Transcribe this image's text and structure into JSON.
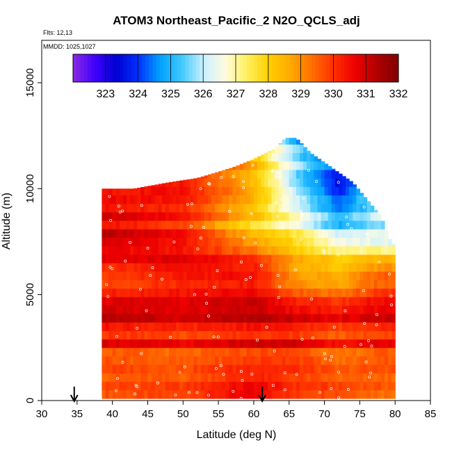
{
  "chart_data": {
    "type": "heatmap",
    "title": "ATOM3 Northeast_Pacific_2 N2O_QCLS_adj",
    "flights_text": "Flts: 12,13",
    "dates_text": "MMDD: 1025,1027",
    "xlabel": "Latitude (deg N)",
    "ylabel": "Altitude (m)",
    "xlim": [
      30,
      85
    ],
    "ylim": [
      0,
      17000
    ],
    "x_ticks": [
      "30",
      "35",
      "40",
      "45",
      "50",
      "55",
      "60",
      "65",
      "70",
      "75",
      "80",
      "85"
    ],
    "y_ticks": [
      "0",
      "5000",
      "10000",
      "15000"
    ],
    "colorbar": {
      "range": [
        322,
        332
      ],
      "tick_labels": [
        "323",
        "324",
        "325",
        "326",
        "327",
        "328",
        "329",
        "330",
        "331",
        "332"
      ],
      "colors": [
        "#8a2be2",
        "#4000ff",
        "#0000d0",
        "#0030ff",
        "#00a0ff",
        "#40c8ff",
        "#c8f0ff",
        "#fffbe0",
        "#fff060",
        "#ffd000",
        "#ffaa00",
        "#ff7000",
        "#ff3000",
        "#ee0000",
        "#b00000",
        "#800000"
      ]
    },
    "profile_markers_lat": [
      34.6,
      61.2
    ],
    "domain_top": [
      [
        39,
        10000
      ],
      [
        43,
        10000
      ],
      [
        48,
        10300
      ],
      [
        52,
        10500
      ],
      [
        57,
        11000
      ],
      [
        60,
        11400
      ],
      [
        63,
        11900
      ],
      [
        64.5,
        12400
      ],
      [
        66,
        12400
      ],
      [
        68,
        11700
      ],
      [
        71,
        11000
      ],
      [
        74,
        10300
      ],
      [
        76,
        9500
      ],
      [
        78,
        8700
      ],
      [
        79.5,
        7400
      ],
      [
        80,
        7400
      ]
    ],
    "domain_left_lat": 38.5,
    "domain_right_lat": 80,
    "value_grid_note": "N2O (ppb) field estimated from colors",
    "field_profiles": [
      {
        "lat": 40,
        "alt": [
          0,
          2000,
          4000,
          6000,
          8000,
          10000
        ],
        "values": [
          330.3,
          330.0,
          330.8,
          329.8,
          330.8,
          330.5
        ]
      },
      {
        "lat": 50,
        "alt": [
          0,
          2000,
          4000,
          6000,
          8000,
          10000
        ],
        "values": [
          330.5,
          329.8,
          330.5,
          330.4,
          330.0,
          330.6
        ]
      },
      {
        "lat": 60,
        "alt": [
          0,
          2000,
          4000,
          6000,
          8000,
          10000,
          11500
        ],
        "values": [
          331.5,
          330.2,
          330.8,
          330.5,
          327.8,
          328.8,
          328.0
        ]
      },
      {
        "lat": 66,
        "alt": [
          0,
          2000,
          4000,
          6000,
          8000,
          10000,
          12000
        ],
        "values": [
          330.5,
          330.3,
          330.5,
          328.8,
          327.0,
          326.0,
          325.0
        ]
      },
      {
        "lat": 72,
        "alt": [
          0,
          2000,
          4000,
          6000,
          8000,
          10000
        ],
        "values": [
          330.5,
          329.6,
          330.2,
          328.5,
          325.5,
          323.8
        ]
      },
      {
        "lat": 78,
        "alt": [
          0,
          2000,
          4000,
          6000,
          7500
        ],
        "values": [
          330.0,
          330.0,
          330.6,
          329.5,
          326.0
        ]
      }
    ]
  }
}
